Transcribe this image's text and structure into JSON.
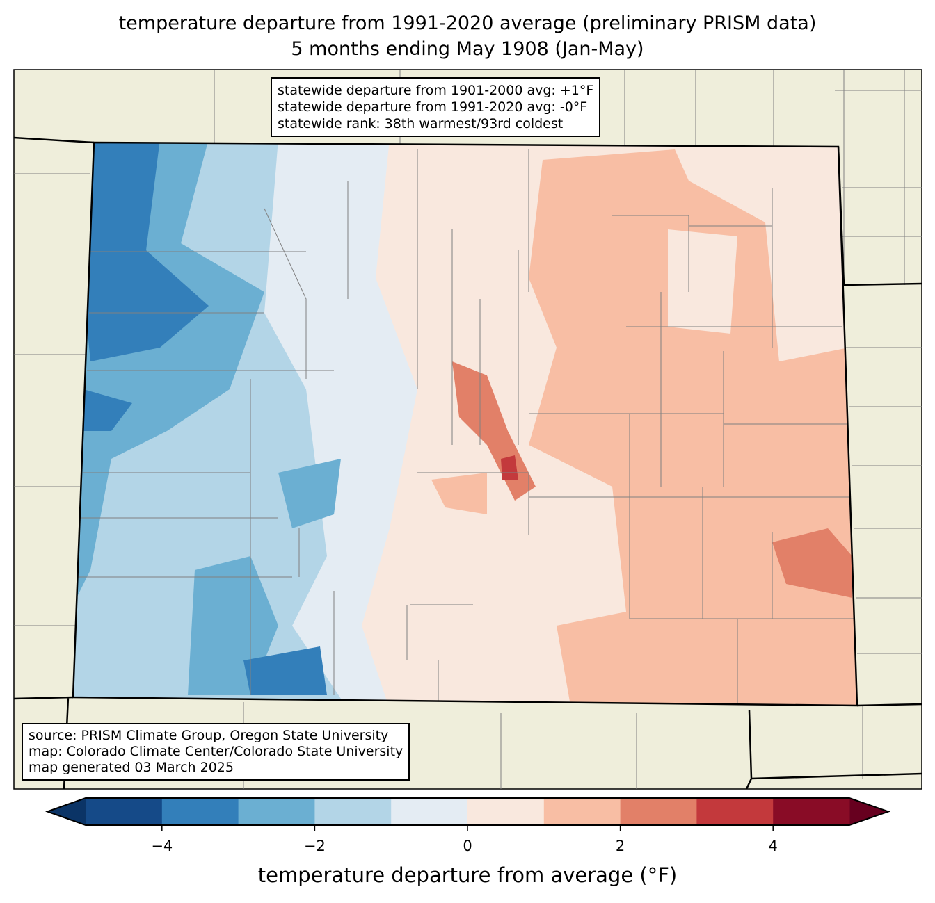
{
  "title": {
    "line1": "temperature departure from 1991-2020 average (preliminary PRISM data)",
    "line2": "5 months ending May 1908 (Jan-May)"
  },
  "stats": {
    "line1": "statewide departure from 1901-2000 avg: +1°F",
    "line2": "statewide departure from 1991-2020 avg: -0°F",
    "line3": "statewide rank: 38th warmest/93rd coldest"
  },
  "source": {
    "line1": "source: PRISM Climate Group, Oregon State University",
    "line2": "map: Colorado Climate Center/Colorado State University",
    "line3": "map generated 03 March 2025"
  },
  "colorbar": {
    "label": "temperature departure from average (°F)",
    "ticks": [
      "−4",
      "−2",
      "0",
      "2",
      "4"
    ],
    "tick_values": [
      -4,
      -2,
      0,
      2,
      4
    ],
    "range": [
      -5,
      5
    ],
    "bins": [
      -5,
      -4,
      -3,
      -2,
      -1,
      0,
      1,
      2,
      3,
      4,
      5
    ],
    "under_color": "#0b3466",
    "over_color": "#67001f",
    "colors": [
      "#154a88",
      "#337fba",
      "#6bafd2",
      "#b3d5e7",
      "#e4ecf3",
      "#f9e8de",
      "#f8bea4",
      "#e28068",
      "#c3393c",
      "#890c26"
    ]
  },
  "colors": {
    "land": "#efeedb",
    "border": "#000000",
    "county": "#808080"
  }
}
